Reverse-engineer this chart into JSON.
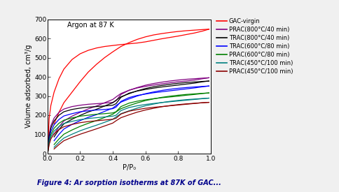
{
  "title_inset": "Argon at 87 K",
  "xlabel": "P/P₀",
  "ylabel": "Volume adsorbed, cm³/g",
  "xlim": [
    0.0,
    1.0
  ],
  "ylim": [
    0,
    700
  ],
  "yticks": [
    0,
    100,
    200,
    300,
    400,
    500,
    600,
    700
  ],
  "xticks": [
    0.0,
    0.2,
    0.4,
    0.6,
    0.8,
    1.0
  ],
  "series": [
    {
      "label": "GAC-virgin",
      "color": "#ff0000",
      "adsorption_x": [
        0.001,
        0.003,
        0.007,
        0.01,
        0.02,
        0.04,
        0.07,
        0.1,
        0.15,
        0.2,
        0.25,
        0.3,
        0.35,
        0.4,
        0.45,
        0.5,
        0.55,
        0.6,
        0.65,
        0.7,
        0.75,
        0.8,
        0.85,
        0.9,
        0.95,
        0.99
      ],
      "adsorption_y": [
        20,
        60,
        130,
        185,
        250,
        320,
        390,
        440,
        490,
        520,
        538,
        550,
        558,
        563,
        568,
        572,
        576,
        582,
        590,
        598,
        605,
        612,
        620,
        628,
        638,
        648
      ],
      "desorption_x": [
        0.99,
        0.95,
        0.9,
        0.85,
        0.8,
        0.75,
        0.7,
        0.65,
        0.6,
        0.55,
        0.5,
        0.45,
        0.4,
        0.35,
        0.3,
        0.25,
        0.2,
        0.15,
        0.1,
        0.07,
        0.04
      ],
      "desorption_y": [
        648,
        646,
        643,
        640,
        636,
        631,
        625,
        618,
        608,
        595,
        578,
        558,
        530,
        500,
        465,
        425,
        375,
        320,
        265,
        215,
        155
      ]
    },
    {
      "label": "PRAC(800°C/40 min)",
      "color": "#800080",
      "adsorption_x": [
        0.001,
        0.003,
        0.007,
        0.01,
        0.02,
        0.04,
        0.07,
        0.1,
        0.15,
        0.2,
        0.25,
        0.3,
        0.35,
        0.4,
        0.42,
        0.45,
        0.5,
        0.55,
        0.6,
        0.65,
        0.7,
        0.75,
        0.8,
        0.85,
        0.9,
        0.95,
        0.99
      ],
      "adsorption_y": [
        10,
        30,
        70,
        100,
        145,
        185,
        215,
        232,
        245,
        252,
        257,
        260,
        263,
        267,
        275,
        308,
        330,
        342,
        350,
        357,
        363,
        369,
        374,
        378,
        383,
        390,
        395
      ],
      "desorption_x": [
        0.99,
        0.95,
        0.9,
        0.85,
        0.8,
        0.75,
        0.7,
        0.65,
        0.6,
        0.55,
        0.5,
        0.45,
        0.42,
        0.4,
        0.35,
        0.3,
        0.25,
        0.2,
        0.15,
        0.1,
        0.07,
        0.04
      ],
      "desorption_y": [
        395,
        393,
        390,
        387,
        383,
        378,
        372,
        365,
        356,
        344,
        330,
        313,
        295,
        282,
        265,
        248,
        233,
        215,
        195,
        170,
        140,
        100
      ]
    },
    {
      "label": "TRAC(800°C/40 min)",
      "color": "#000000",
      "adsorption_x": [
        0.001,
        0.003,
        0.007,
        0.01,
        0.02,
        0.04,
        0.07,
        0.1,
        0.15,
        0.2,
        0.25,
        0.3,
        0.35,
        0.4,
        0.42,
        0.45,
        0.5,
        0.55,
        0.6,
        0.65,
        0.7,
        0.75,
        0.8,
        0.85,
        0.9,
        0.95,
        0.99
      ],
      "adsorption_y": [
        8,
        25,
        62,
        90,
        132,
        170,
        200,
        218,
        230,
        237,
        242,
        245,
        248,
        252,
        260,
        293,
        315,
        326,
        334,
        341,
        347,
        352,
        357,
        362,
        367,
        374,
        378
      ],
      "desorption_x": [
        0.99,
        0.95,
        0.9,
        0.85,
        0.8,
        0.75,
        0.7,
        0.65,
        0.6,
        0.55,
        0.5,
        0.45,
        0.42,
        0.4,
        0.35,
        0.3,
        0.25,
        0.2,
        0.15,
        0.1,
        0.07,
        0.04
      ],
      "desorption_y": [
        378,
        376,
        373,
        370,
        366,
        361,
        355,
        348,
        339,
        327,
        312,
        296,
        278,
        265,
        248,
        231,
        217,
        199,
        179,
        155,
        125,
        87
      ]
    },
    {
      "label": "TRAC(600°C/80 min)",
      "color": "#0000ff",
      "adsorption_x": [
        0.001,
        0.003,
        0.007,
        0.01,
        0.02,
        0.04,
        0.07,
        0.1,
        0.15,
        0.2,
        0.25,
        0.3,
        0.35,
        0.4,
        0.42,
        0.45,
        0.5,
        0.55,
        0.6,
        0.65,
        0.7,
        0.75,
        0.8,
        0.85,
        0.9,
        0.95,
        0.99
      ],
      "adsorption_y": [
        7,
        20,
        52,
        76,
        115,
        150,
        178,
        196,
        208,
        218,
        223,
        227,
        230,
        234,
        242,
        272,
        292,
        303,
        310,
        317,
        322,
        327,
        332,
        337,
        342,
        348,
        352
      ],
      "desorption_x": [
        0.99,
        0.95,
        0.9,
        0.85,
        0.8,
        0.75,
        0.7,
        0.65,
        0.6,
        0.55,
        0.5,
        0.45,
        0.42,
        0.4,
        0.35,
        0.3,
        0.25,
        0.2,
        0.15,
        0.1,
        0.07,
        0.04
      ],
      "desorption_y": [
        352,
        350,
        347,
        344,
        340,
        335,
        329,
        321,
        312,
        300,
        285,
        268,
        250,
        237,
        220,
        203,
        189,
        172,
        152,
        128,
        100,
        67
      ]
    },
    {
      "label": "PRAC(600°C/80 min)",
      "color": "#008000",
      "adsorption_x": [
        0.001,
        0.003,
        0.007,
        0.01,
        0.02,
        0.04,
        0.07,
        0.1,
        0.15,
        0.2,
        0.25,
        0.3,
        0.35,
        0.4,
        0.42,
        0.45,
        0.5,
        0.55,
        0.6,
        0.65,
        0.7,
        0.75,
        0.8,
        0.85,
        0.9,
        0.95,
        0.99
      ],
      "adsorption_y": [
        6,
        17,
        44,
        65,
        100,
        132,
        158,
        174,
        186,
        195,
        200,
        205,
        208,
        212,
        218,
        245,
        263,
        273,
        280,
        286,
        291,
        295,
        299,
        304,
        308,
        313,
        316
      ],
      "desorption_x": [
        0.99,
        0.95,
        0.9,
        0.85,
        0.8,
        0.75,
        0.7,
        0.65,
        0.6,
        0.55,
        0.5,
        0.45,
        0.42,
        0.4,
        0.35,
        0.3,
        0.25,
        0.2,
        0.15,
        0.1,
        0.07,
        0.04
      ],
      "desorption_y": [
        316,
        314,
        311,
        308,
        304,
        299,
        293,
        285,
        276,
        264,
        250,
        234,
        217,
        205,
        188,
        172,
        158,
        142,
        123,
        101,
        76,
        47
      ]
    },
    {
      "label": "TRAC(450°C/100 min)",
      "color": "#008080",
      "adsorption_x": [
        0.001,
        0.003,
        0.007,
        0.01,
        0.02,
        0.04,
        0.07,
        0.1,
        0.15,
        0.2,
        0.25,
        0.3,
        0.35,
        0.4,
        0.42,
        0.45,
        0.5,
        0.55,
        0.6,
        0.65,
        0.7,
        0.75,
        0.8,
        0.85,
        0.9,
        0.95,
        0.99
      ],
      "adsorption_y": [
        5,
        14,
        37,
        56,
        87,
        117,
        141,
        157,
        168,
        177,
        183,
        187,
        191,
        195,
        200,
        224,
        240,
        249,
        256,
        261,
        266,
        270,
        274,
        278,
        282,
        286,
        289
      ],
      "desorption_x": [
        0.99,
        0.95,
        0.9,
        0.85,
        0.8,
        0.75,
        0.7,
        0.65,
        0.6,
        0.55,
        0.5,
        0.45,
        0.42,
        0.4,
        0.35,
        0.3,
        0.25,
        0.2,
        0.15,
        0.1,
        0.07,
        0.04
      ],
      "desorption_y": [
        289,
        287,
        284,
        281,
        277,
        272,
        266,
        258,
        249,
        237,
        223,
        208,
        191,
        179,
        163,
        148,
        134,
        119,
        101,
        81,
        59,
        33
      ]
    },
    {
      "label": "PRAC(450°C/100 min)",
      "color": "#8b0000",
      "adsorption_x": [
        0.001,
        0.003,
        0.007,
        0.01,
        0.02,
        0.04,
        0.07,
        0.1,
        0.15,
        0.2,
        0.25,
        0.3,
        0.35,
        0.4,
        0.42,
        0.45,
        0.5,
        0.55,
        0.6,
        0.65,
        0.7,
        0.75,
        0.8,
        0.85,
        0.9,
        0.95,
        0.99
      ],
      "adsorption_y": [
        4,
        12,
        32,
        48,
        76,
        103,
        125,
        140,
        152,
        161,
        167,
        171,
        175,
        179,
        184,
        206,
        221,
        229,
        236,
        241,
        245,
        249,
        253,
        257,
        261,
        265,
        267
      ],
      "desorption_x": [
        0.99,
        0.95,
        0.9,
        0.85,
        0.8,
        0.75,
        0.7,
        0.65,
        0.6,
        0.55,
        0.5,
        0.45,
        0.42,
        0.4,
        0.35,
        0.3,
        0.25,
        0.2,
        0.15,
        0.1,
        0.07,
        0.04
      ],
      "desorption_y": [
        267,
        265,
        262,
        259,
        255,
        250,
        244,
        236,
        227,
        216,
        202,
        187,
        171,
        159,
        144,
        129,
        115,
        101,
        85,
        67,
        47,
        24
      ]
    }
  ],
  "background_color": "#f0f0f0",
  "plot_bg_color": "#ffffff",
  "outer_bg_color": "#ffffff",
  "title_fontsize": 7,
  "label_fontsize": 7,
  "tick_fontsize": 6.5,
  "legend_fontsize": 6,
  "caption_text": "Figure 4: Ar sorption isotherms at 87K of GAC...",
  "caption_fontsize": 7,
  "caption_color": "#00008b"
}
